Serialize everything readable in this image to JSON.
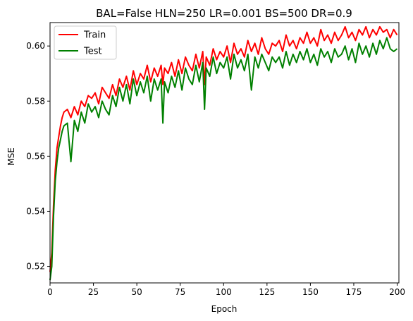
{
  "chart_data": {
    "type": "line",
    "title": "BAL=False HLN=250 LR=0.001 BS=500 DR=0.9",
    "xlabel": "Epoch",
    "ylabel": "MSE",
    "xlim": [
      0,
      201
    ],
    "ylim": [
      0.514,
      0.6085
    ],
    "xticks": [
      0,
      25,
      50,
      75,
      100,
      125,
      150,
      175,
      200
    ],
    "yticks": [
      0.52,
      0.54,
      0.56,
      0.58,
      0.6
    ],
    "ytick_labels": [
      "0.52",
      "0.54",
      "0.56",
      "0.58",
      "0.60"
    ],
    "legend_position": "top-left",
    "grid": false,
    "series": [
      {
        "name": "Train",
        "color": "#ff0000",
        "x": [
          0,
          1,
          2,
          3,
          4,
          5,
          6,
          7,
          8,
          10,
          12,
          14,
          16,
          18,
          20,
          22,
          24,
          26,
          28,
          30,
          32,
          34,
          36,
          38,
          40,
          42,
          44,
          46,
          48,
          50,
          52,
          54,
          56,
          58,
          60,
          62,
          64,
          65,
          66,
          68,
          70,
          72,
          74,
          76,
          78,
          80,
          82,
          84,
          86,
          88,
          89,
          90,
          92,
          94,
          96,
          98,
          100,
          102,
          104,
          106,
          108,
          110,
          112,
          114,
          116,
          118,
          120,
          122,
          124,
          126,
          128,
          130,
          132,
          134,
          136,
          138,
          140,
          142,
          144,
          146,
          148,
          150,
          152,
          154,
          156,
          158,
          160,
          162,
          164,
          166,
          168,
          170,
          172,
          174,
          176,
          178,
          180,
          182,
          184,
          186,
          188,
          190,
          192,
          194,
          196,
          198,
          200
        ],
        "y": [
          0.518,
          0.525,
          0.542,
          0.555,
          0.563,
          0.567,
          0.571,
          0.574,
          0.576,
          0.577,
          0.574,
          0.578,
          0.575,
          0.58,
          0.578,
          0.582,
          0.581,
          0.583,
          0.579,
          0.585,
          0.583,
          0.581,
          0.586,
          0.582,
          0.588,
          0.585,
          0.589,
          0.584,
          0.591,
          0.586,
          0.59,
          0.588,
          0.593,
          0.587,
          0.592,
          0.589,
          0.593,
          0.586,
          0.592,
          0.59,
          0.594,
          0.589,
          0.595,
          0.59,
          0.596,
          0.593,
          0.591,
          0.597,
          0.592,
          0.598,
          0.586,
          0.596,
          0.593,
          0.599,
          0.595,
          0.598,
          0.596,
          0.6,
          0.594,
          0.601,
          0.597,
          0.599,
          0.596,
          0.602,
          0.598,
          0.601,
          0.597,
          0.603,
          0.599,
          0.597,
          0.601,
          0.6,
          0.602,
          0.598,
          0.604,
          0.6,
          0.602,
          0.599,
          0.603,
          0.601,
          0.605,
          0.601,
          0.603,
          0.6,
          0.606,
          0.602,
          0.604,
          0.601,
          0.605,
          0.602,
          0.604,
          0.607,
          0.603,
          0.605,
          0.602,
          0.606,
          0.604,
          0.607,
          0.603,
          0.606,
          0.604,
          0.607,
          0.605,
          0.606,
          0.603,
          0.606,
          0.604
        ]
      },
      {
        "name": "Test",
        "color": "#008000",
        "x": [
          0,
          1,
          2,
          3,
          4,
          5,
          6,
          7,
          8,
          10,
          12,
          14,
          16,
          18,
          20,
          22,
          24,
          26,
          28,
          30,
          32,
          34,
          36,
          38,
          40,
          42,
          44,
          46,
          48,
          50,
          52,
          54,
          56,
          58,
          60,
          62,
          64,
          65,
          66,
          68,
          70,
          72,
          74,
          76,
          78,
          80,
          82,
          84,
          86,
          88,
          89,
          90,
          92,
          94,
          96,
          98,
          100,
          102,
          104,
          106,
          108,
          110,
          112,
          114,
          116,
          118,
          120,
          122,
          124,
          126,
          128,
          130,
          132,
          134,
          136,
          138,
          140,
          142,
          144,
          146,
          148,
          150,
          152,
          154,
          156,
          158,
          160,
          162,
          164,
          166,
          168,
          170,
          172,
          174,
          176,
          178,
          180,
          182,
          184,
          186,
          188,
          190,
          192,
          194,
          196,
          198,
          200
        ],
        "y": [
          0.515,
          0.52,
          0.538,
          0.551,
          0.558,
          0.563,
          0.566,
          0.569,
          0.571,
          0.572,
          0.558,
          0.573,
          0.569,
          0.576,
          0.572,
          0.579,
          0.576,
          0.578,
          0.574,
          0.58,
          0.577,
          0.575,
          0.582,
          0.578,
          0.585,
          0.58,
          0.586,
          0.579,
          0.588,
          0.582,
          0.587,
          0.583,
          0.589,
          0.58,
          0.588,
          0.584,
          0.588,
          0.572,
          0.587,
          0.583,
          0.589,
          0.585,
          0.591,
          0.584,
          0.592,
          0.588,
          0.586,
          0.593,
          0.587,
          0.594,
          0.577,
          0.592,
          0.589,
          0.596,
          0.59,
          0.594,
          0.592,
          0.596,
          0.588,
          0.597,
          0.592,
          0.595,
          0.591,
          0.597,
          0.584,
          0.596,
          0.592,
          0.597,
          0.594,
          0.591,
          0.596,
          0.594,
          0.596,
          0.592,
          0.598,
          0.593,
          0.597,
          0.594,
          0.598,
          0.595,
          0.599,
          0.594,
          0.597,
          0.593,
          0.599,
          0.596,
          0.598,
          0.594,
          0.599,
          0.596,
          0.597,
          0.6,
          0.595,
          0.599,
          0.594,
          0.601,
          0.597,
          0.6,
          0.596,
          0.601,
          0.597,
          0.602,
          0.599,
          0.603,
          0.599,
          0.598,
          0.599
        ]
      }
    ]
  }
}
